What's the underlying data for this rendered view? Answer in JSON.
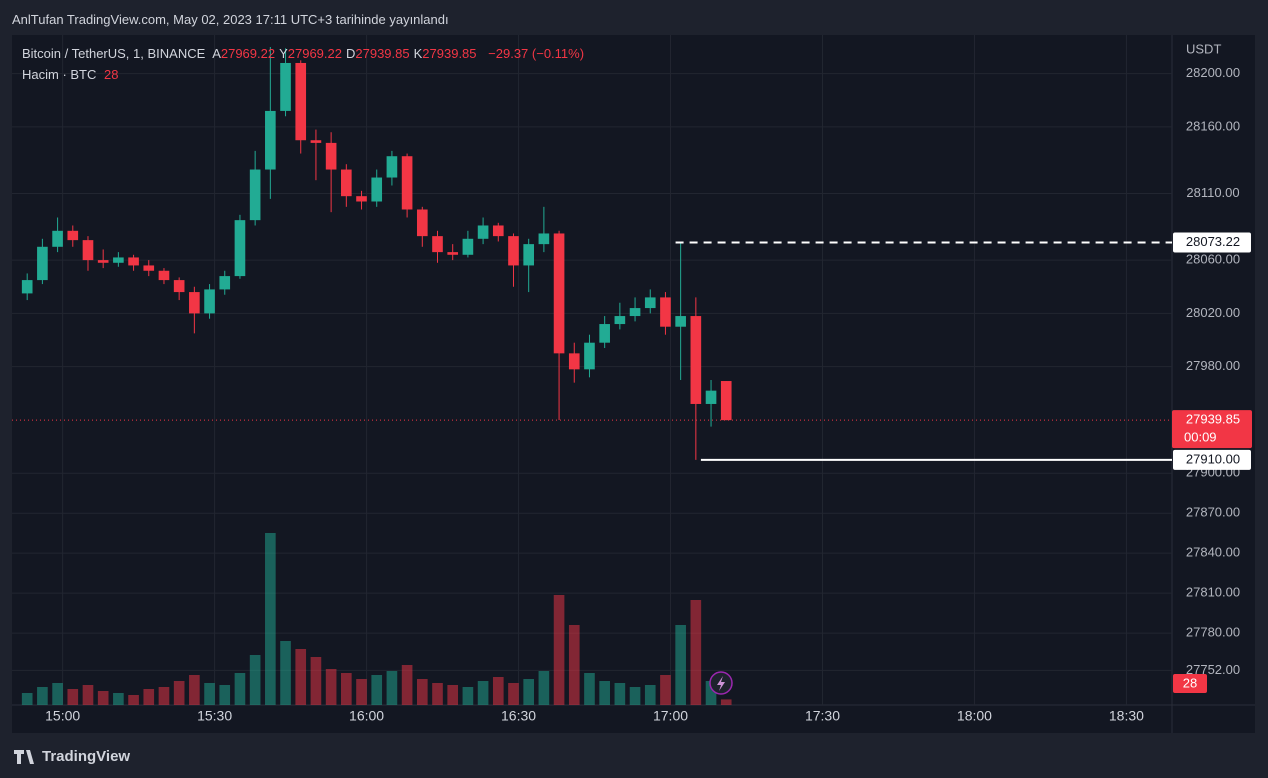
{
  "chart_data": {
    "type": "candlestick",
    "published": "AnlTufan TradingView.com, May 02, 2023 17:11 UTC+3 tarihinde yayınlandı",
    "title": "Bitcoin / TetherUS, 1, BINANCE",
    "ohlc_labels": [
      "A",
      "Y",
      "D",
      "K"
    ],
    "change_label": "−29.37 (−0.11%)",
    "volume_label": "Hacim · BTC",
    "currency": "USDT",
    "countdown": "00:09",
    "brand": "TradingView",
    "up_color": "#22ab94",
    "down_color": "#f23645",
    "volume_up_color": "#22ab9480",
    "volume_down_color": "#f2364580",
    "grid": true,
    "x": [
      "14:53",
      "14:56",
      "14:59",
      "15:02",
      "15:05",
      "15:08",
      "15:11",
      "15:14",
      "15:17",
      "15:20",
      "15:23",
      "15:26",
      "15:29",
      "15:32",
      "15:35",
      "15:38",
      "15:41",
      "15:44",
      "15:47",
      "15:50",
      "15:53",
      "15:56",
      "15:59",
      "16:02",
      "16:05",
      "16:08",
      "16:11",
      "16:14",
      "16:17",
      "16:20",
      "16:23",
      "16:26",
      "16:29",
      "16:32",
      "16:35",
      "16:38",
      "16:41",
      "16:44",
      "16:47",
      "16:50",
      "16:53",
      "16:56",
      "16:59",
      "17:02",
      "17:05",
      "17:08",
      "17:11"
    ],
    "open": [
      28035,
      28045,
      28070,
      28082,
      28075,
      28060,
      28058,
      28062,
      28056,
      28052,
      28045,
      28036,
      28020,
      28038,
      28048,
      28090,
      28128,
      28172,
      28208,
      28150,
      28148,
      28128,
      28108,
      28104,
      28122,
      28138,
      28098,
      28078,
      28066,
      28064,
      28076,
      28086,
      28078,
      28056,
      28072,
      28080,
      27990,
      27978,
      27998,
      28012,
      28018,
      28024,
      28032,
      28010,
      28018,
      27952,
      27969.22
    ],
    "high": [
      28050,
      28076,
      28092,
      28086,
      28078,
      28068,
      28066,
      28064,
      28060,
      28054,
      28047,
      28040,
      28042,
      28052,
      28094,
      28142,
      28220,
      28219,
      28210,
      28158,
      28156,
      28132,
      28112,
      28128,
      28142,
      28140,
      28100,
      28082,
      28072,
      28082,
      28092,
      28088,
      28080,
      28076,
      28100,
      28082,
      27998,
      28004,
      28018,
      28028,
      28032,
      28038,
      28036,
      28073,
      28032,
      27970,
      27969.22
    ],
    "low": [
      28030,
      28042,
      28066,
      28070,
      28052,
      28054,
      28055,
      28052,
      28048,
      28042,
      28030,
      28005,
      28016,
      28034,
      28046,
      28086,
      28106,
      28168,
      28140,
      28120,
      28096,
      28100,
      28098,
      28100,
      28116,
      28092,
      28070,
      28058,
      28060,
      28062,
      28072,
      28074,
      28040,
      28036,
      28066,
      27940,
      27968,
      27972,
      27994,
      28008,
      28014,
      28020,
      28004,
      27970,
      27910,
      27935,
      27939.85
    ],
    "close": [
      28045,
      28070,
      28082,
      28075,
      28060,
      28058,
      28062,
      28056,
      28052,
      28045,
      28036,
      28020,
      28038,
      28048,
      28090,
      28128,
      28172,
      28208,
      28150,
      28148,
      28128,
      28108,
      28104,
      28122,
      28138,
      28098,
      28078,
      28066,
      28064,
      28076,
      28086,
      28078,
      28056,
      28072,
      28080,
      27990,
      27978,
      27998,
      28012,
      28018,
      28024,
      28032,
      28010,
      28018,
      27952,
      27962,
      27939.85
    ],
    "volume": [
      60,
      90,
      110,
      80,
      100,
      70,
      60,
      50,
      80,
      90,
      120,
      150,
      110,
      100,
      160,
      250,
      860,
      320,
      280,
      240,
      180,
      160,
      130,
      150,
      170,
      200,
      130,
      110,
      100,
      90,
      120,
      140,
      110,
      130,
      170,
      550,
      400,
      160,
      120,
      110,
      90,
      100,
      150,
      400,
      525,
      120,
      28
    ],
    "volume_ylim": [
      0,
      3350
    ],
    "xlim": [
      "14:50",
      "18:39"
    ],
    "xticks": [
      "15:00",
      "15:30",
      "16:00",
      "16:30",
      "17:00",
      "17:30",
      "18:00",
      "18:30"
    ],
    "ylim": [
      27726,
      28229
    ],
    "yticks": [
      {
        "value": 28200,
        "label": "28200.00"
      },
      {
        "value": 28160,
        "label": "28160.00"
      },
      {
        "value": 28110,
        "label": "28110.00"
      },
      {
        "value": 28060,
        "label": "28060.00"
      },
      {
        "value": 28020,
        "label": "28020.00"
      },
      {
        "value": 27980,
        "label": "27980.00"
      },
      {
        "value": 27900,
        "label": "27900.00"
      },
      {
        "value": 27870,
        "label": "27870.00"
      },
      {
        "value": 27840,
        "label": "27840.00"
      },
      {
        "value": 27810,
        "label": "27810.00"
      },
      {
        "value": 27780,
        "label": "27780.00"
      },
      {
        "value": 27752,
        "label": "27752.00"
      }
    ],
    "levels": [
      {
        "value": 28073.22,
        "label": "28073.22",
        "start": "17:01",
        "style": "dashed"
      },
      {
        "value": 27910,
        "label": "27910.00",
        "start": "17:06",
        "style": "solid"
      }
    ]
  }
}
